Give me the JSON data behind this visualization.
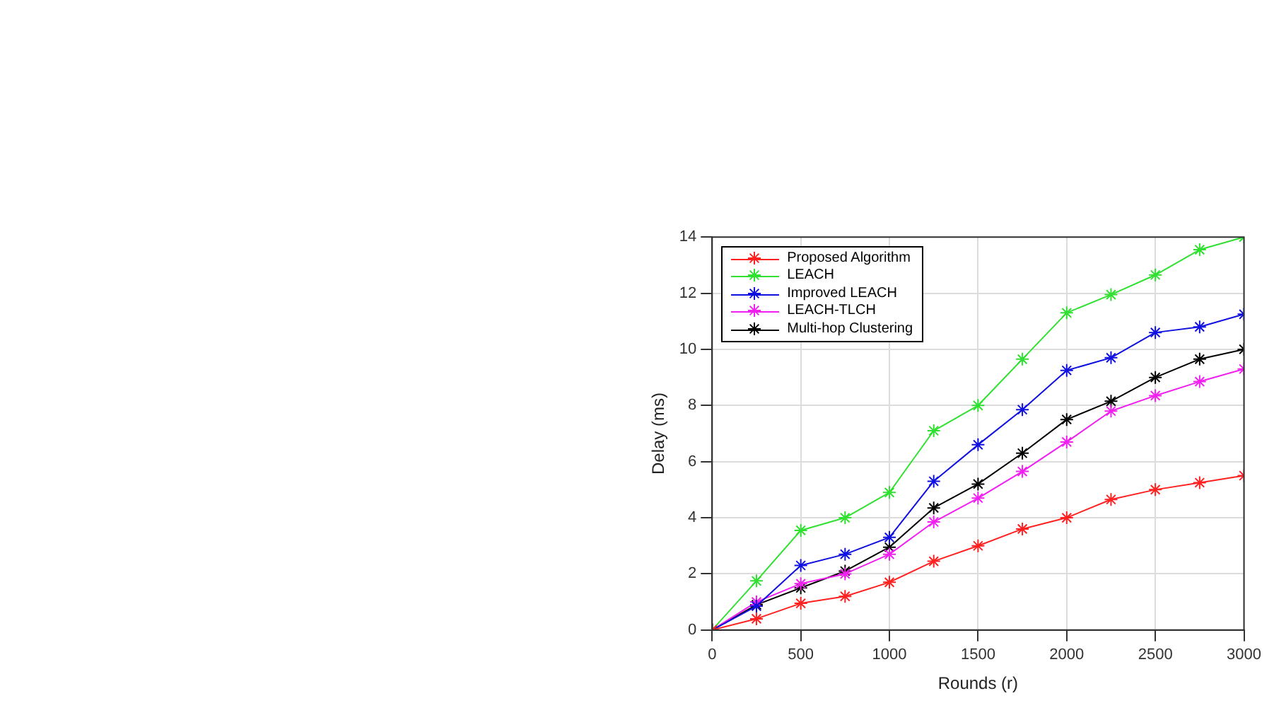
{
  "chart_data": {
    "type": "line",
    "xlabel": "Rounds (r)",
    "ylabel": "Delay (ms)",
    "x": [
      0,
      250,
      500,
      750,
      1000,
      1250,
      1500,
      1750,
      2000,
      2250,
      2500,
      2750,
      3000
    ],
    "series": [
      {
        "name": "Proposed Algorithm",
        "color": "#ff2020",
        "values": [
          0,
          0.4,
          0.95,
          1.2,
          1.7,
          2.45,
          3.0,
          3.6,
          4.0,
          4.65,
          5.0,
          5.25,
          5.5
        ]
      },
      {
        "name": "LEACH",
        "color": "#30e030",
        "values": [
          0,
          1.75,
          3.55,
          4.0,
          4.9,
          7.1,
          8.0,
          9.65,
          11.3,
          11.95,
          12.65,
          13.55,
          14.0
        ]
      },
      {
        "name": "Improved LEACH",
        "color": "#1010e0",
        "values": [
          0,
          0.85,
          2.3,
          2.7,
          3.3,
          5.3,
          6.6,
          7.85,
          9.25,
          9.7,
          10.6,
          10.8,
          11.25
        ]
      },
      {
        "name": "LEACH-TLCH",
        "color": "#f020f0",
        "values": [
          0,
          1.0,
          1.65,
          2.0,
          2.7,
          3.85,
          4.7,
          5.65,
          6.7,
          7.8,
          8.35,
          8.85,
          9.3
        ]
      },
      {
        "name": "Multi-hop Clustering",
        "color": "#000000",
        "values": [
          0,
          0.9,
          1.5,
          2.1,
          2.95,
          4.35,
          5.2,
          6.3,
          7.5,
          8.15,
          9.0,
          9.65,
          10.0
        ]
      }
    ],
    "xlim": [
      0,
      3000
    ],
    "xticks": [
      0,
      500,
      1000,
      1500,
      2000,
      2500,
      3000
    ],
    "ylim": [
      0,
      14
    ],
    "yticks": [
      0,
      2,
      4,
      6,
      8,
      10,
      12,
      14
    ],
    "grid": true,
    "legend": "top left",
    "marker": "cross",
    "line_style": "solid"
  }
}
